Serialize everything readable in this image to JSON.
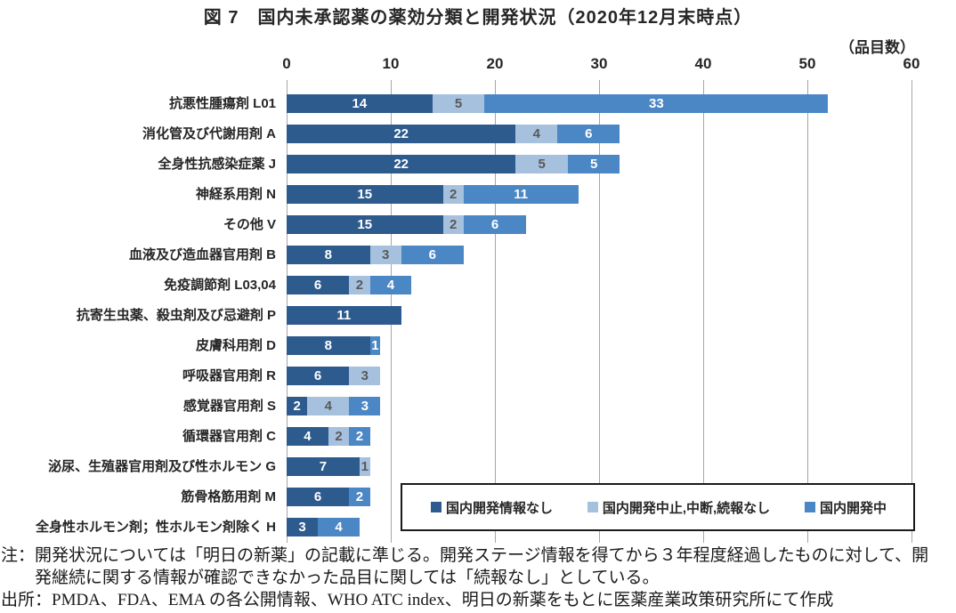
{
  "title": "図 7　国内未承認薬の薬効分類と開発状況（2020年12月末時点）",
  "unit_label": "（品目数）",
  "chart_data": {
    "type": "bar",
    "orientation": "horizontal",
    "stacked": true,
    "title": "国内未承認薬の薬効分類と開発状況（2020年12月末時点）",
    "xlabel": "品目数",
    "xlim": [
      0,
      60
    ],
    "x_ticks": [
      0,
      10,
      20,
      30,
      40,
      50,
      60
    ],
    "grid": true,
    "gridline_color": "#A6A6A6",
    "legend_position": "bottom-right boxed",
    "categories": [
      "抗悪性腫瘍剤 L01",
      "消化管及び代謝用剤 A",
      "全身性抗感染症薬 J",
      "神経系用剤 N",
      "その他 V",
      "血液及び造血器官用剤 B",
      "免疫調節剤 L03,04",
      "抗寄生虫薬、殺虫剤及び忌避剤 P",
      "皮膚科用剤 D",
      "呼吸器官用剤 R",
      "感覚器官用剤 S",
      "循環器官用剤 C",
      "泌尿、生殖器官用剤及び性ホルモン G",
      "筋骨格筋用剤 M",
      "全身性ホルモン剤；性ホルモン剤除く H"
    ],
    "series": [
      {
        "name": "国内開発情報なし",
        "color": "#2E5B8E",
        "value_label_color": "#FFFFFF",
        "values": [
          14,
          22,
          22,
          15,
          15,
          8,
          6,
          11,
          8,
          6,
          2,
          4,
          7,
          6,
          3
        ]
      },
      {
        "name": "国内開発中止,中断,続報なし",
        "color": "#A6C1DE",
        "value_label_color": "#595959",
        "values": [
          5,
          4,
          5,
          2,
          2,
          3,
          2,
          0,
          0,
          3,
          4,
          2,
          1,
          0,
          0
        ]
      },
      {
        "name": "国内開発中",
        "color": "#4C87C5",
        "value_label_color": "#FFFFFF",
        "values": [
          33,
          6,
          5,
          11,
          6,
          6,
          4,
          0,
          1,
          0,
          3,
          2,
          0,
          2,
          4
        ]
      }
    ]
  },
  "notes": {
    "line1": "注：開発状況については「明日の新薬」の記載に準じる。開発ステージ情報を得てから３年程度経過したものに対して、開",
    "line2": "発継続に関する情報が確認できなかった品目に関しては「続報なし」としている。",
    "source": "出所：PMDA、FDA、EMA の各公開情報、WHO ATC index、明日の新薬をもとに医薬産業政策研究所にて作成"
  }
}
